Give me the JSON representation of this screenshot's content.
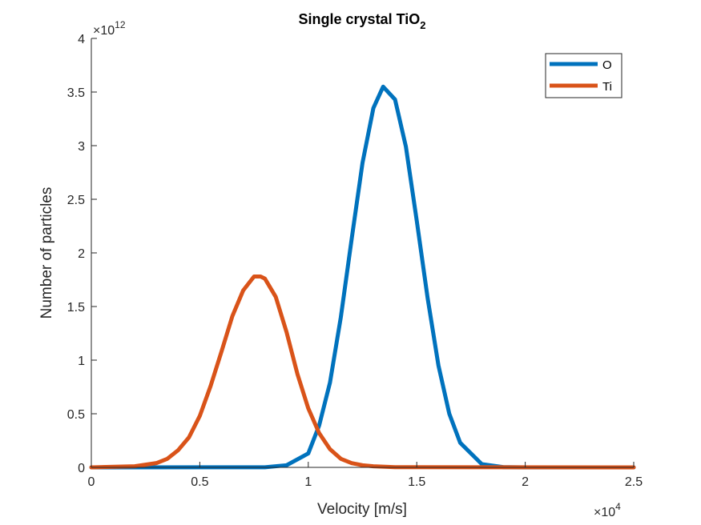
{
  "chart_data": {
    "type": "line",
    "title": {
      "main": "Single crystal TiO",
      "subscript": "2"
    },
    "xlabel": "Velocity [m/s]",
    "ylabel": "Number of particles",
    "xlim": [
      0,
      25000
    ],
    "ylim": [
      0,
      4000000000000
    ],
    "x_ticks": [
      0,
      5000,
      10000,
      15000,
      20000,
      25000
    ],
    "x_tick_labels": [
      "0",
      "0.5",
      "1",
      "1.5",
      "2",
      "2.5"
    ],
    "y_ticks": [
      0,
      500000000000,
      1000000000000,
      1500000000000,
      2000000000000,
      2500000000000,
      3000000000000,
      3500000000000,
      4000000000000
    ],
    "y_tick_labels": [
      "0",
      "0.5",
      "1",
      "1.5",
      "2",
      "2.5",
      "3",
      "3.5",
      "4"
    ],
    "x_exponent": {
      "base": "×10",
      "power": "4"
    },
    "y_exponent": {
      "base": "×10",
      "power": "12"
    },
    "grid": false,
    "legend_position": "top-right",
    "series": [
      {
        "name": "O",
        "color": "#0072BD",
        "x": [
          0,
          8000,
          9000,
          10000,
          10500,
          11000,
          11500,
          12000,
          12500,
          13000,
          13450,
          14000,
          14500,
          15000,
          15500,
          16000,
          16500,
          17000,
          18000,
          19000,
          20000,
          25000
        ],
        "values": [
          0,
          1000000000,
          20000000000,
          130000000000,
          390000000000,
          790000000000,
          1400000000000,
          2130000000000,
          2840000000000,
          3350000000000,
          3550000000000,
          3430000000000,
          2990000000000,
          2300000000000,
          1580000000000,
          950000000000,
          500000000000,
          230000000000,
          30000000000,
          2000000000,
          0,
          0
        ]
      },
      {
        "name": "Ti",
        "color": "#D95319",
        "x": [
          0,
          2000,
          3000,
          3500,
          4000,
          4500,
          5000,
          5500,
          6000,
          6500,
          7000,
          7500,
          7800,
          8000,
          8500,
          9000,
          9500,
          10000,
          10500,
          11000,
          11500,
          12000,
          12500,
          13000,
          14000,
          25000
        ],
        "values": [
          0,
          10000000000,
          40000000000,
          80000000000,
          160000000000,
          280000000000,
          480000000000,
          760000000000,
          1080000000000,
          1410000000000,
          1650000000000,
          1780000000000,
          1780000000000,
          1760000000000,
          1590000000000,
          1260000000000,
          870000000000,
          550000000000,
          320000000000,
          170000000000,
          80000000000,
          40000000000,
          20000000000,
          10000000000,
          2000000000,
          0
        ]
      }
    ]
  }
}
